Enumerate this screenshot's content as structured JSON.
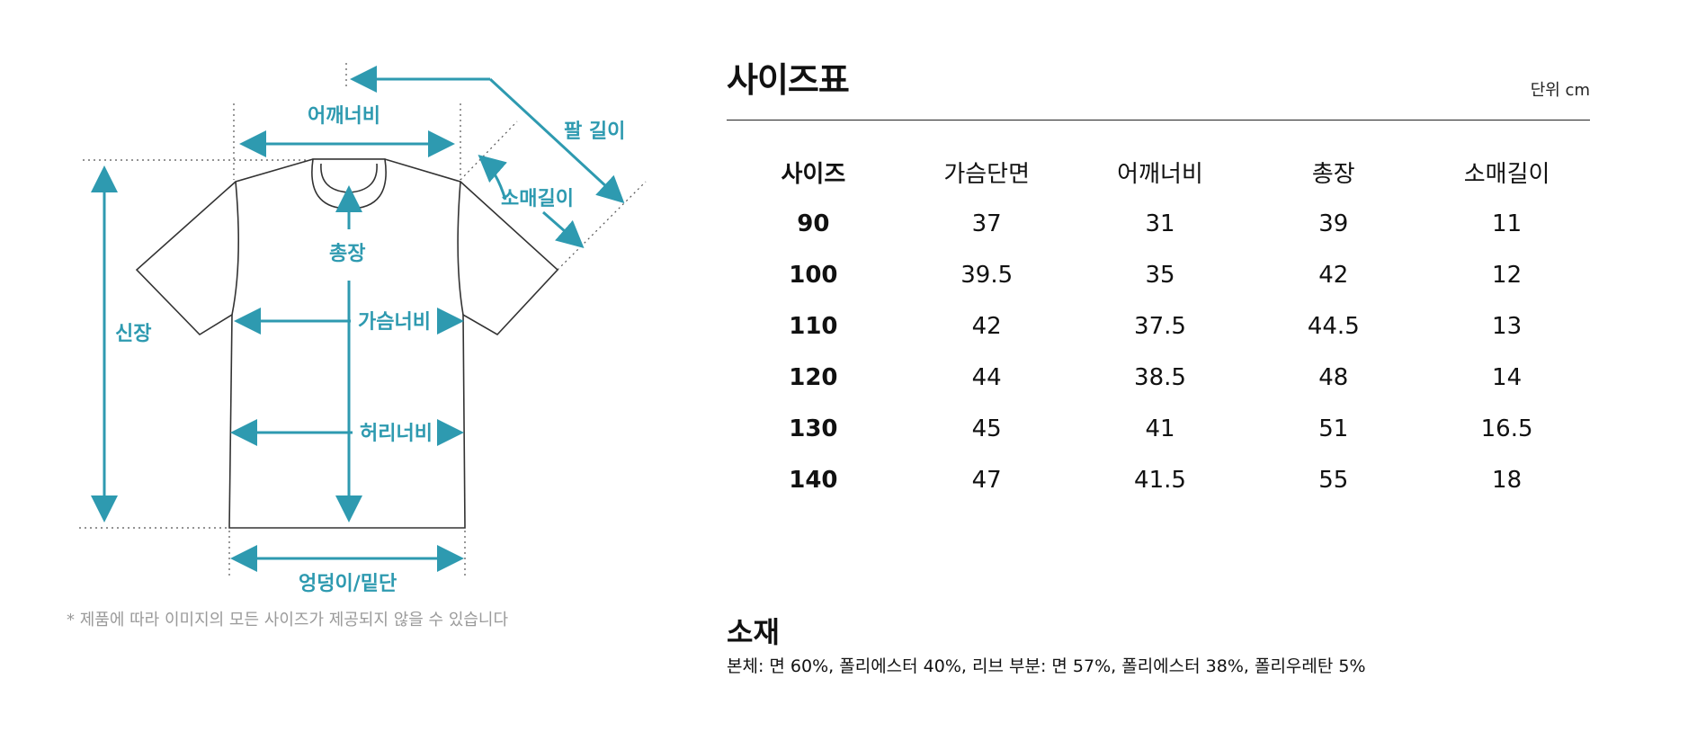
{
  "diagram": {
    "labels": {
      "shoulder": "어깨너비",
      "arm_length": "팔 길이",
      "sleeve": "소매길이",
      "height": "신장",
      "total_length": "총장",
      "chest": "가슴너비",
      "waist": "허리너비",
      "hem": "엉덩이/밑단"
    },
    "accent_color": "#2e9ab0",
    "footnote": "* 제품에 따라 이미지의 모든 사이즈가 제공되지 않을 수 있습니다"
  },
  "size_chart": {
    "title": "사이즈표",
    "unit": "단위 cm",
    "headers": [
      "사이즈",
      "가슴단면",
      "어깨너비",
      "총장",
      "소매길이"
    ],
    "rows": [
      [
        "90",
        "37",
        "31",
        "39",
        "11"
      ],
      [
        "100",
        "39.5",
        "35",
        "42",
        "12"
      ],
      [
        "110",
        "42",
        "37.5",
        "44.5",
        "13"
      ],
      [
        "120",
        "44",
        "38.5",
        "48",
        "14"
      ],
      [
        "130",
        "45",
        "41",
        "51",
        "16.5"
      ],
      [
        "140",
        "47",
        "41.5",
        "55",
        "18"
      ]
    ]
  },
  "material": {
    "title": "소재",
    "text": "본체: 면 60%, 폴리에스터 40%, 리브 부분: 면 57%, 폴리에스터 38%, 폴리우레탄 5%"
  }
}
